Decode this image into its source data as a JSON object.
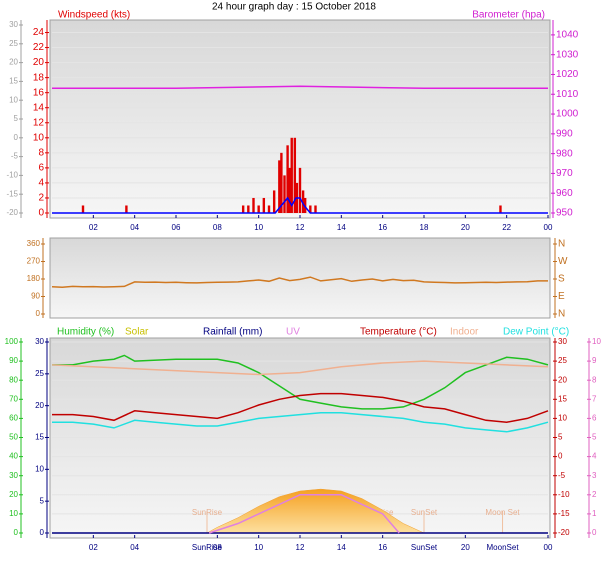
{
  "chart_data": [
    {
      "type": "bar",
      "title": "24 hour graph day : 15 October 2018",
      "ylabel": "Windspeed (kts)",
      "y2label": "Barometer (hpa)",
      "xlim": [
        0,
        24
      ],
      "xticks": [
        {
          "value": 2,
          "label": "02"
        },
        {
          "value": 4,
          "label": "04"
        },
        {
          "value": 6,
          "label": "06"
        },
        {
          "value": 8,
          "label": "08"
        },
        10,
        12,
        14,
        16,
        18,
        20,
        22,
        {
          "value": 24,
          "label": "00"
        }
      ],
      "ylim": [
        0,
        25
      ],
      "yticks": [
        0,
        2,
        4,
        6,
        8,
        10,
        12,
        14,
        16,
        18,
        20,
        22,
        24
      ],
      "ycolor": "#e00000",
      "y2lim": [
        950,
        1045
      ],
      "y2ticks": [
        950,
        960,
        970,
        980,
        990,
        1000,
        1010,
        1020,
        1030,
        1040
      ],
      "y2color": "#d020d0",
      "y3lim": [
        -20,
        30
      ],
      "y3ticks": [
        -20,
        -15,
        -10,
        -5,
        0,
        5,
        10,
        15,
        20,
        25,
        30
      ],
      "y3color": "#a0a0a0",
      "grid": true,
      "series": [
        {
          "type": "bar",
          "axis": "y",
          "color": "#e00000",
          "x": [
            1.5,
            3.6,
            9.25,
            9.5,
            9.75,
            10,
            10.25,
            10.5,
            10.75,
            11,
            11.1,
            11.25,
            11.4,
            11.5,
            11.6,
            11.75,
            11.85,
            12,
            12.15,
            12.25,
            12.5,
            12.75,
            21.7
          ],
          "values": [
            1,
            1,
            1,
            1,
            2,
            1,
            2,
            1,
            3,
            7,
            8,
            5,
            9,
            6,
            10,
            10,
            4,
            6,
            3,
            2,
            1,
            1,
            1
          ]
        },
        {
          "type": "line",
          "axis": "y",
          "color": "#0000ff",
          "x": [
            0,
            10.8,
            11.1,
            11.4,
            11.6,
            11.8,
            12,
            12.2,
            12.5,
            24
          ],
          "values": [
            0,
            0,
            1,
            2,
            1,
            2,
            2,
            1,
            0,
            0
          ]
        },
        {
          "type": "line",
          "axis": "y2",
          "color": "#e020e0",
          "x": [
            0,
            6,
            12,
            18,
            24
          ],
          "values": [
            1013,
            1013,
            1014,
            1013,
            1013
          ]
        }
      ]
    },
    {
      "type": "line",
      "xlim": [
        0,
        24
      ],
      "ylim": [
        0,
        360
      ],
      "yticks": [
        0,
        90,
        180,
        270,
        360
      ],
      "ycolor": "#c07020",
      "y2lim": [
        0,
        360
      ],
      "y2ticks": [
        {
          "value": 0,
          "label": "N"
        },
        {
          "value": 90,
          "label": "E"
        },
        {
          "value": 180,
          "label": "S"
        },
        {
          "value": 270,
          "label": "W"
        },
        {
          "value": 360,
          "label": "N"
        }
      ],
      "y2color": "#c07020",
      "grid": false,
      "series": [
        {
          "type": "line",
          "axis": "y",
          "color": "#d07820",
          "x": [
            0,
            0.5,
            1,
            1.5,
            2,
            2.5,
            3,
            3.5,
            4,
            4.5,
            5,
            5.5,
            6,
            6.5,
            7,
            7.5,
            8,
            8.5,
            9,
            9.5,
            10,
            10.5,
            11,
            11.5,
            12,
            12.5,
            13,
            13.5,
            14,
            14.5,
            15,
            15.5,
            16,
            16.5,
            17,
            17.5,
            18,
            18.5,
            19,
            19.5,
            20,
            20.5,
            21,
            21.5,
            22,
            22.5,
            23,
            23.5,
            24
          ],
          "values": [
            140,
            138,
            142,
            140,
            141,
            139,
            140,
            142,
            165,
            163,
            164,
            162,
            163,
            161,
            160,
            162,
            163,
            164,
            165,
            170,
            175,
            168,
            185,
            172,
            178,
            190,
            170,
            176,
            182,
            168,
            175,
            180,
            170,
            178,
            172,
            174,
            165,
            163,
            162,
            160,
            161,
            162,
            163,
            162,
            164,
            165,
            166,
            170,
            170
          ]
        }
      ]
    },
    {
      "type": "line",
      "xlim": [
        0,
        24
      ],
      "xticks": [
        {
          "value": 2,
          "label": "02"
        },
        {
          "value": 4,
          "label": "04"
        },
        {
          "value": 8,
          "label": "08"
        },
        10,
        12,
        14,
        16,
        20,
        {
          "value": 24,
          "label": "00"
        }
      ],
      "ylim": [
        0,
        100
      ],
      "yticks": [
        0,
        10,
        20,
        30,
        40,
        50,
        60,
        70,
        80,
        90,
        100
      ],
      "ycolor": "#20c020",
      "y2lim": [
        0,
        30
      ],
      "y2ticks": [
        0,
        5,
        10,
        15,
        20,
        25,
        30
      ],
      "y2color": "#000080",
      "y3lim": [
        -20,
        30
      ],
      "y3ticks": [
        -20,
        -15,
        -10,
        -5,
        0,
        5,
        10,
        15,
        20,
        25,
        30
      ],
      "y3color": "#c00000",
      "y4lim": [
        0,
        10
      ],
      "y4ticks": [
        0,
        1,
        2,
        3,
        4,
        5,
        6,
        7,
        8,
        9,
        10
      ],
      "y4color": "#e060c0",
      "grid": true,
      "series": [
        {
          "name": "Humidity (%)",
          "type": "line",
          "axis": "y",
          "color": "#20c020",
          "x": [
            0,
            1,
            2,
            3,
            3.5,
            4,
            6,
            8,
            9,
            10,
            11,
            12,
            13,
            14,
            15,
            16,
            17,
            18,
            19,
            20,
            21,
            22,
            23,
            24
          ],
          "values": [
            88,
            88,
            90,
            91,
            93,
            90,
            91,
            91,
            89,
            84,
            77,
            70,
            68,
            66,
            65,
            65,
            66,
            70,
            76,
            84,
            88,
            92,
            91,
            88
          ]
        },
        {
          "name": "Solar",
          "type": "area",
          "axis": "y",
          "color": "#c8c000",
          "x": [
            7.5,
            8,
            9,
            10,
            11,
            12,
            13,
            14,
            15,
            16,
            17,
            18
          ],
          "values": [
            0,
            3,
            8,
            14,
            19,
            22,
            23,
            22,
            18,
            12,
            5,
            0
          ]
        },
        {
          "name": "Rainfall (mm)",
          "type": "line",
          "axis": "y2",
          "color": "#000080",
          "x": [
            0,
            24
          ],
          "values": [
            0,
            0
          ]
        },
        {
          "name": "UV",
          "type": "line",
          "axis": "y4",
          "color": "#e080e0",
          "x": [
            7.6,
            9,
            10,
            11,
            12,
            13,
            14,
            15,
            16,
            16.8
          ],
          "values": [
            0,
            0.5,
            1,
            1.5,
            2,
            2,
            2,
            1.5,
            1,
            0
          ]
        },
        {
          "name": "Temperature (°C)",
          "type": "line",
          "axis": "y3",
          "color": "#c00000",
          "x": [
            0,
            1,
            2,
            3,
            4,
            5,
            6,
            7,
            8,
            9,
            10,
            11,
            12,
            13,
            14,
            15,
            16,
            17,
            18,
            19,
            20,
            21,
            22,
            23,
            24
          ],
          "values": [
            11,
            11,
            10.5,
            9.5,
            12,
            11.5,
            11,
            10.5,
            10,
            11.5,
            13.5,
            15,
            16,
            16.5,
            16.5,
            16,
            15.5,
            14.5,
            13,
            12.5,
            11,
            9.5,
            9,
            10,
            12
          ]
        },
        {
          "name": "Indoor",
          "type": "line",
          "axis": "y3",
          "color": "#f0b090",
          "x": [
            0,
            4,
            8,
            10,
            12,
            14,
            16,
            18,
            20,
            22,
            24
          ],
          "values": [
            24,
            23,
            22,
            21.5,
            22,
            23.5,
            24.5,
            25,
            24.5,
            24,
            23.5
          ]
        },
        {
          "name": "Dew Point (°C)",
          "type": "line",
          "axis": "y3",
          "color": "#20e0e0",
          "x": [
            0,
            1,
            2,
            3,
            4,
            5,
            6,
            7,
            8,
            9,
            10,
            11,
            12,
            13,
            14,
            15,
            16,
            17,
            18,
            19,
            20,
            21,
            22,
            23,
            24
          ],
          "values": [
            9,
            9,
            8.5,
            7.5,
            9.5,
            9,
            8.5,
            8,
            8,
            9,
            10,
            10.5,
            11,
            11.5,
            11.5,
            11,
            10.5,
            10,
            9,
            8.5,
            7.5,
            7,
            6.5,
            7.5,
            9
          ]
        }
      ],
      "events": [
        {
          "label": "SunRise",
          "axis_label": "SunRise",
          "x": 7.5
        },
        {
          "label": "Moon Rise",
          "x": 15.6
        },
        {
          "label": "SunSet",
          "axis_label": "SunSet",
          "x": 18
        },
        {
          "label": "Moon Set",
          "axis_label": "MoonSet",
          "x": 21.8
        }
      ]
    }
  ]
}
